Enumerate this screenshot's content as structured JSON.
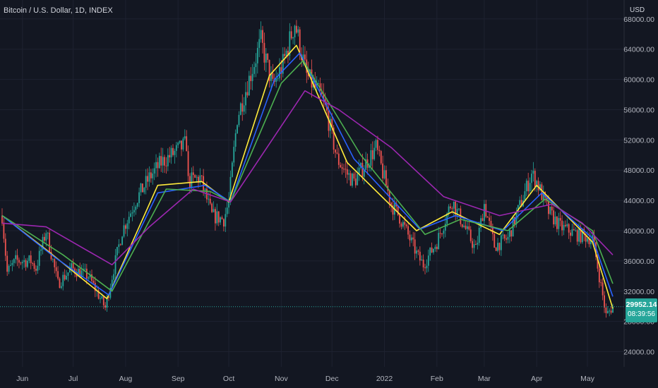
{
  "header": {
    "title": "Bitcoin / U.S. Dollar, 1D, INDEX",
    "currency": "USD"
  },
  "last_price": {
    "value": "29952.14",
    "countdown": "08:39:56"
  },
  "colors": {
    "background": "#131722",
    "grid": "#1e2230",
    "axis_text": "#b2b5be",
    "candle_up": "#26a69a",
    "candle_down": "#ef5350",
    "ma_fast": "#ffeb3b",
    "ma_mid": "#2962ff",
    "ma_slow": "#4caf50",
    "ma_long": "#9c27b0",
    "last_line": "#26a69a"
  },
  "chart_data": {
    "type": "candlestick",
    "title": "Bitcoin / U.S. Dollar, 1D, INDEX",
    "ylabel": "USD",
    "ylim": [
      22000,
      70500
    ],
    "y_ticks": [
      24000,
      28000,
      32000,
      36000,
      40000,
      44000,
      48000,
      52000,
      56000,
      60000,
      64000,
      68000
    ],
    "x_ticks": [
      "Jun",
      "Jul",
      "Aug",
      "Sep",
      "Oct",
      "Nov",
      "Dec",
      "2022",
      "Feb",
      "Mar",
      "Apr",
      "May"
    ],
    "grid": true,
    "price_anchors": [
      [
        "2021-05-20",
        42000
      ],
      [
        "2021-05-23",
        34500
      ],
      [
        "2021-05-28",
        36000
      ],
      [
        "2021-06-06",
        36000
      ],
      [
        "2021-06-09",
        35000
      ],
      [
        "2021-06-15",
        40000
      ],
      [
        "2021-06-22",
        33000
      ],
      [
        "2021-06-30",
        35000
      ],
      [
        "2021-07-10",
        34000
      ],
      [
        "2021-07-20",
        29800
      ],
      [
        "2021-07-25",
        35000
      ],
      [
        "2021-07-30",
        40000
      ],
      [
        "2021-08-07",
        44000
      ],
      [
        "2021-08-15",
        47000
      ],
      [
        "2021-08-22",
        49000
      ],
      [
        "2021-09-06",
        51500
      ],
      [
        "2021-09-07",
        46500
      ],
      [
        "2021-09-14",
        47000
      ],
      [
        "2021-09-21",
        42000
      ],
      [
        "2021-09-28",
        41500
      ],
      [
        "2021-10-01",
        43800
      ],
      [
        "2021-10-06",
        55000
      ],
      [
        "2021-10-15",
        61500
      ],
      [
        "2021-10-20",
        65000
      ],
      [
        "2021-10-27",
        59000
      ],
      [
        "2021-11-02",
        62000
      ],
      [
        "2021-11-09",
        67500
      ],
      [
        "2021-11-16",
        60500
      ],
      [
        "2021-11-25",
        57500
      ],
      [
        "2021-11-28",
        55500
      ],
      [
        "2021-12-04",
        49500
      ],
      [
        "2021-12-10",
        47500
      ],
      [
        "2021-12-14",
        46500
      ],
      [
        "2021-12-27",
        51000
      ],
      [
        "2022-01-05",
        43500
      ],
      [
        "2022-01-10",
        41800
      ],
      [
        "2022-01-21",
        36500
      ],
      [
        "2022-01-24",
        35500
      ],
      [
        "2022-02-01",
        38500
      ],
      [
        "2022-02-10",
        44000
      ],
      [
        "2022-02-14",
        42000
      ],
      [
        "2022-02-24",
        37500
      ],
      [
        "2022-03-01",
        43500
      ],
      [
        "2022-03-07",
        38000
      ],
      [
        "2022-03-15",
        39000
      ],
      [
        "2022-03-29",
        47500
      ],
      [
        "2022-04-01",
        46500
      ],
      [
        "2022-04-08",
        42500
      ],
      [
        "2022-04-15",
        40500
      ],
      [
        "2022-04-25",
        39500
      ],
      [
        "2022-05-04",
        39000
      ],
      [
        "2022-05-08",
        34000
      ],
      [
        "2022-05-12",
        28800
      ],
      [
        "2022-05-16",
        29952.14
      ]
    ],
    "series": [
      {
        "name": "",
        "kind": "moving-average",
        "color": "#ffeb3b",
        "points": [
          [
            "2021-05-20",
            42000
          ],
          [
            "2021-06-15",
            37500
          ],
          [
            "2021-07-21",
            31000
          ],
          [
            "2021-08-20",
            46000
          ],
          [
            "2021-09-15",
            46500
          ],
          [
            "2021-10-01",
            43800
          ],
          [
            "2021-10-25",
            60500
          ],
          [
            "2021-11-10",
            64500
          ],
          [
            "2021-12-10",
            49000
          ],
          [
            "2022-01-20",
            40000
          ],
          [
            "2022-02-10",
            42500
          ],
          [
            "2022-03-10",
            39500
          ],
          [
            "2022-04-01",
            46000
          ],
          [
            "2022-05-04",
            38500
          ],
          [
            "2022-05-16",
            29700
          ]
        ]
      },
      {
        "name": "",
        "kind": "moving-average",
        "color": "#2962ff",
        "points": [
          [
            "2021-05-20",
            42000
          ],
          [
            "2021-06-20",
            36500
          ],
          [
            "2021-07-22",
            31500
          ],
          [
            "2021-08-20",
            45000
          ],
          [
            "2021-09-17",
            46000
          ],
          [
            "2021-10-02",
            43800
          ],
          [
            "2021-10-28",
            60000
          ],
          [
            "2021-11-12",
            63500
          ],
          [
            "2021-12-14",
            49500
          ],
          [
            "2022-01-22",
            40200
          ],
          [
            "2022-02-12",
            42000
          ],
          [
            "2022-03-12",
            40000
          ],
          [
            "2022-04-04",
            45000
          ],
          [
            "2022-05-04",
            39000
          ],
          [
            "2022-05-16",
            31300
          ]
        ]
      },
      {
        "name": "",
        "kind": "moving-average",
        "color": "#4caf50",
        "points": [
          [
            "2021-05-20",
            42000
          ],
          [
            "2021-06-25",
            36800
          ],
          [
            "2021-07-24",
            32000
          ],
          [
            "2021-08-25",
            45500
          ],
          [
            "2021-09-20",
            45200
          ],
          [
            "2021-10-02",
            43800
          ],
          [
            "2021-11-01",
            59500
          ],
          [
            "2021-11-14",
            62500
          ],
          [
            "2021-12-18",
            50000
          ],
          [
            "2022-01-25",
            39500
          ],
          [
            "2022-02-15",
            41500
          ],
          [
            "2022-03-15",
            40000
          ],
          [
            "2022-04-06",
            44200
          ],
          [
            "2022-05-04",
            40000
          ],
          [
            "2022-05-16",
            33000
          ]
        ]
      },
      {
        "name": "",
        "kind": "moving-average",
        "color": "#9c27b0",
        "points": [
          [
            "2021-05-20",
            41000
          ],
          [
            "2021-06-15",
            40500
          ],
          [
            "2021-07-24",
            35500
          ],
          [
            "2021-08-15",
            40500
          ],
          [
            "2021-09-10",
            45500
          ],
          [
            "2021-10-02",
            43800
          ],
          [
            "2021-11-15",
            58500
          ],
          [
            "2021-12-05",
            56000
          ],
          [
            "2022-01-05",
            51000
          ],
          [
            "2022-02-05",
            44500
          ],
          [
            "2022-03-10",
            42000
          ],
          [
            "2022-04-10",
            43500
          ],
          [
            "2022-04-28",
            41000
          ],
          [
            "2022-05-16",
            36800
          ]
        ]
      }
    ]
  }
}
